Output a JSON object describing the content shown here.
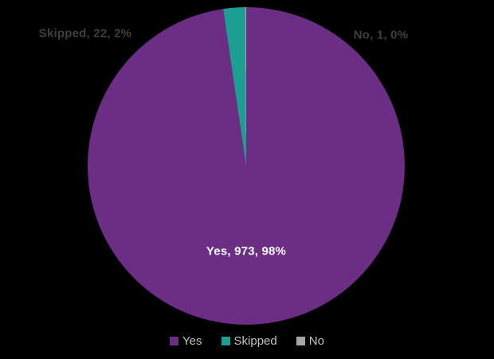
{
  "chart_data": {
    "type": "pie",
    "title": "",
    "categories": [
      "Yes",
      "Skipped",
      "No"
    ],
    "values": [
      973,
      22,
      1
    ],
    "percent_labels": [
      "98%",
      "2%",
      "0%"
    ],
    "data_labels": [
      "Yes, 973, 98%",
      "Skipped, 22, 2%",
      "No, 1, 0%"
    ],
    "slice_colors": [
      "#6b2e84",
      "#1d9e93",
      "#a6a6a6"
    ],
    "start_angle_deg": 0,
    "direction": "clockwise",
    "legend_position": "bottom",
    "background": "#000000",
    "label_color_outside": "#3f3f3f",
    "label_color_inside": "#ffffff",
    "legend_text_color": "#c3c3c3"
  },
  "legend": {
    "items": [
      {
        "label": "Yes",
        "color": "#6b2e84"
      },
      {
        "label": "Skipped",
        "color": "#1d9e93"
      },
      {
        "label": "No",
        "color": "#a6a6a6"
      }
    ]
  }
}
